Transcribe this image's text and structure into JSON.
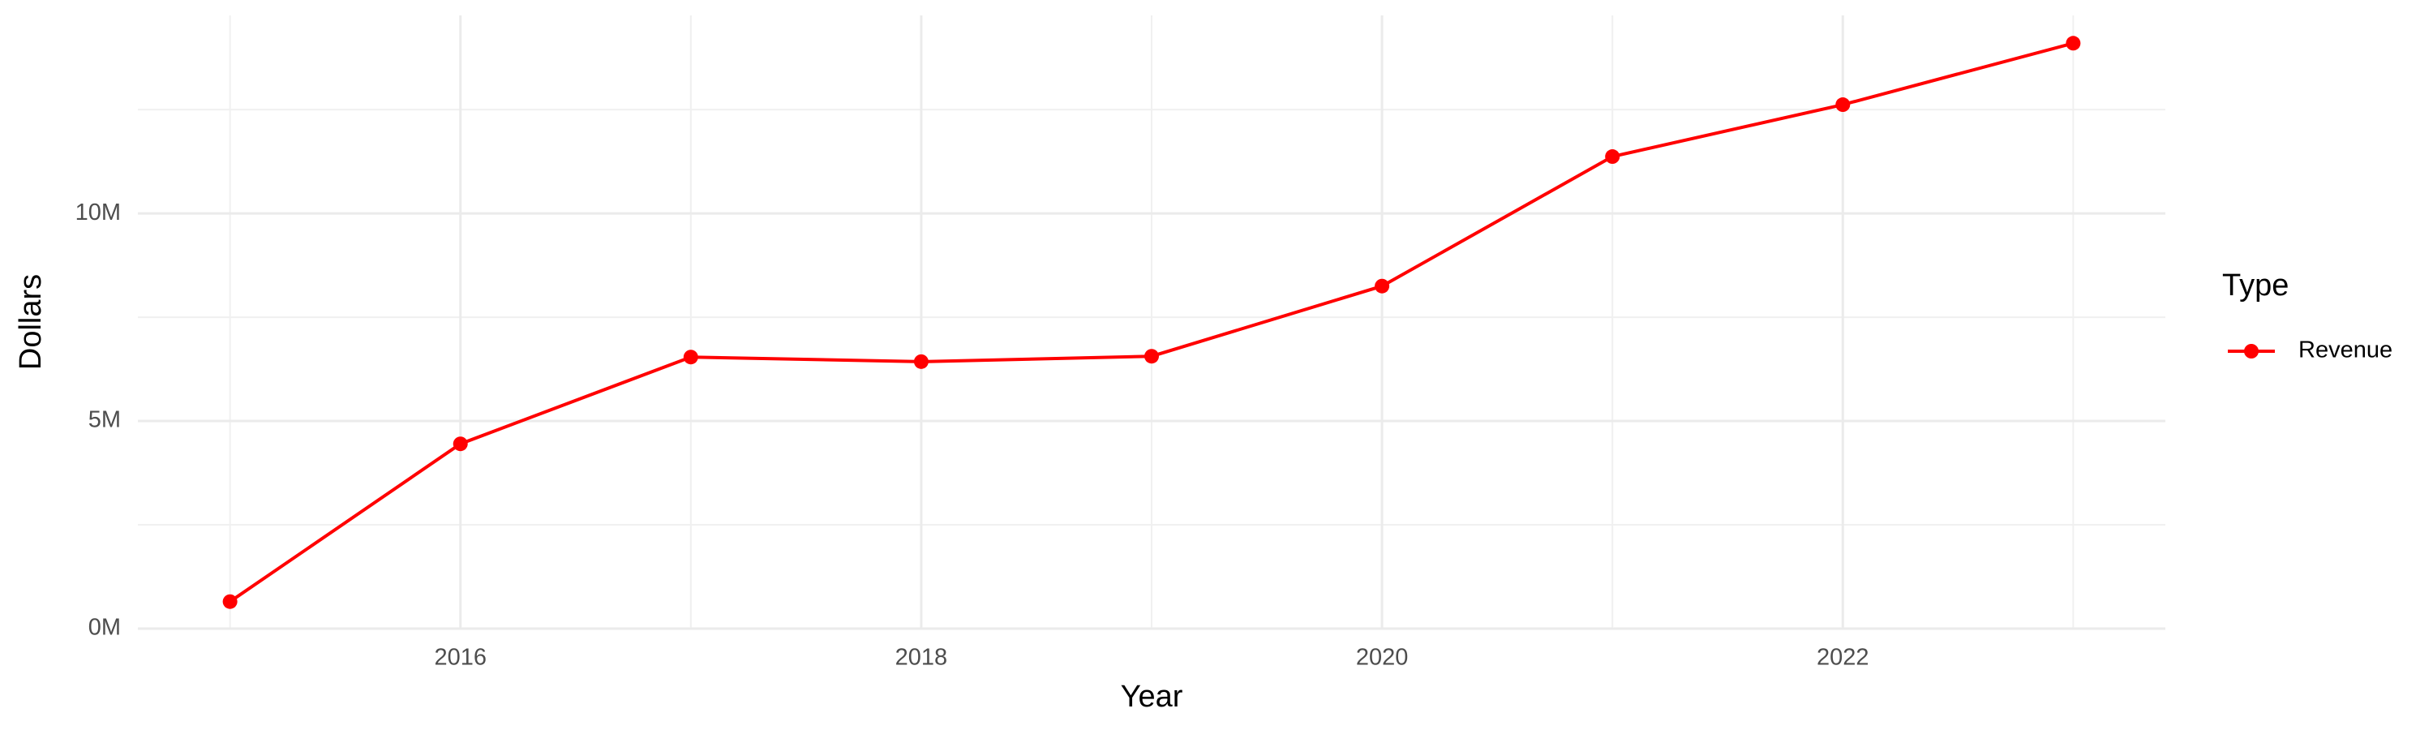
{
  "chart_data": {
    "type": "line",
    "x_label": "Year",
    "y_label": "Dollars",
    "legend_title": "Type",
    "x": [
      2015,
      2016,
      2017,
      2018,
      2019,
      2020,
      2021,
      2022,
      2023
    ],
    "series": [
      {
        "name": "Revenue",
        "color": "#ff0000",
        "values": [
          650000,
          4450000,
          6540000,
          6430000,
          6560000,
          8250000,
          11370000,
          12620000,
          14100000
        ]
      }
    ],
    "xlim": [
      2014.6,
      2023.4
    ],
    "xticks": [
      2016,
      2018,
      2020,
      2022
    ],
    "xminor": [
      2015,
      2017,
      2019,
      2021,
      2023
    ],
    "ylim": [
      -20000,
      14770000
    ],
    "yticks": [
      {
        "value": 0,
        "label": "0M"
      },
      {
        "value": 5000000,
        "label": "5M"
      },
      {
        "value": 10000000,
        "label": "10M"
      }
    ],
    "yminor": [
      2500000,
      7500000,
      12500000
    ],
    "grid": true,
    "legend": "right"
  }
}
